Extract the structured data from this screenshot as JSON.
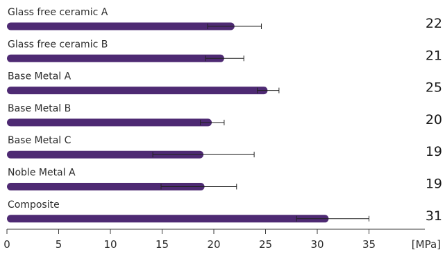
{
  "chart_data": {
    "type": "bar",
    "orientation": "horizontal",
    "categories": [
      "Glass free ceramic A",
      "Glass free ceramic B",
      "Base Metal A",
      "Base Metal B",
      "Base Metal C",
      "Noble Metal A",
      "Composite"
    ],
    "values": [
      22,
      21,
      25.2,
      19.8,
      19,
      19.1,
      31.1
    ],
    "value_labels": [
      "22",
      "21",
      "25",
      "20",
      "19",
      "19",
      "31"
    ],
    "error_low": [
      19.4,
      19.2,
      24.2,
      18.7,
      14.1,
      14.9,
      28
    ],
    "error_high": [
      24.6,
      22.9,
      26.3,
      21,
      23.9,
      22.2,
      35
    ],
    "xlim": [
      0,
      40
    ],
    "x_ticks": [
      0,
      5,
      10,
      15,
      20,
      25,
      30,
      35
    ],
    "x_tick_labels": [
      "0",
      "5",
      "10",
      "15",
      "20",
      "25",
      "30",
      "35"
    ],
    "x_unit_label": "[MPa]",
    "grid": false,
    "bar_color": "#4e2a73",
    "text_color": "#2b2b2b"
  }
}
